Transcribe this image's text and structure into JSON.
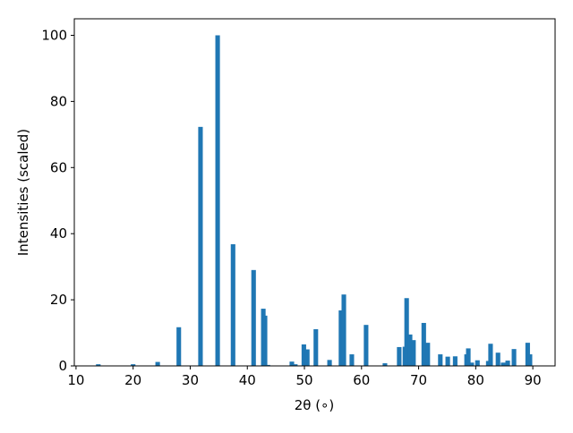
{
  "chart_data": {
    "type": "bar",
    "x_label": "2θ (∘)",
    "y_label": "Intensities (scaled)",
    "x": [
      13.9,
      20.0,
      24.3,
      28.0,
      31.8,
      34.8,
      37.5,
      41.1,
      42.8,
      43.1,
      43.6,
      47.8,
      48.4,
      49.9,
      50.5,
      52.0,
      54.4,
      56.4,
      56.9,
      58.3,
      60.8,
      64.1,
      66.6,
      67.6,
      67.9,
      68.5,
      69.1,
      70.9,
      71.6,
      73.8,
      75.1,
      76.4,
      78.4,
      78.7,
      79.3,
      80.3,
      82.2,
      82.6,
      83.9,
      84.8,
      85.6,
      86.7,
      89.1,
      89.5
    ],
    "values": [
      0.5,
      0.5,
      1.2,
      11.7,
      72.3,
      100,
      36.8,
      29,
      17.3,
      15.2,
      0.3,
      1.3,
      0.5,
      6.5,
      5,
      11.1,
      1.8,
      16.8,
      21.6,
      3.5,
      12.4,
      0.8,
      5.7,
      5.8,
      20.5,
      9.5,
      7.8,
      13,
      7,
      3.5,
      2.8,
      2.9,
      3.5,
      5.3,
      1,
      1.7,
      1.5,
      6.7,
      4,
      1,
      1.6,
      5.1,
      7,
      3.5
    ],
    "color": "#1f77b4",
    "xlim": [
      9.7,
      93.9
    ],
    "xticks": [
      10,
      20,
      30,
      40,
      50,
      60,
      70,
      80,
      90
    ],
    "ylim": [
      0,
      105
    ],
    "yticks": [
      0,
      20,
      40,
      60,
      80,
      100
    ]
  }
}
